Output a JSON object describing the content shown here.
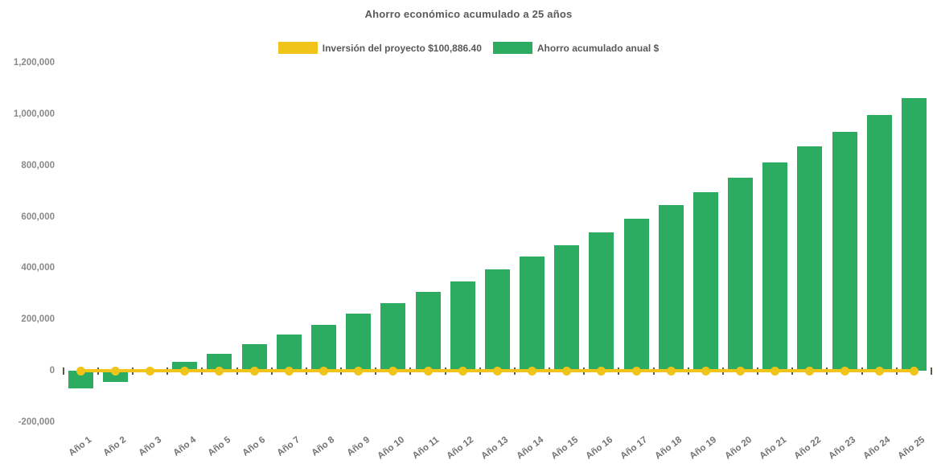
{
  "chart": {
    "title": "Ahorro económico acumulado a 25 años",
    "legend": [
      {
        "label": "Inversión del proyecto $100,886.40",
        "color": "#F0C419"
      },
      {
        "label": "Ahorro acumulado anual $",
        "color": "#2BAC60"
      }
    ]
  },
  "chart_data": {
    "type": "bar",
    "title": "Ahorro económico acumulado a 25 años",
    "xlabel": "",
    "ylabel": "",
    "ylim": [
      -200000,
      1200000
    ],
    "grid": false,
    "legend_position": "top-center",
    "categories": [
      "Año 1",
      "Año 2",
      "Año 3",
      "Año 4",
      "Año 5",
      "Año 6",
      "Año 7",
      "Año 8",
      "Año 9",
      "Año 10",
      "Año 11",
      "Año 12",
      "Año 13",
      "Año 14",
      "Año 15",
      "Año 16",
      "Año 17",
      "Año 18",
      "Año 19",
      "Año 20",
      "Año 21",
      "Año 22",
      "Año 23",
      "Año 24",
      "Año 25"
    ],
    "ytick_values": [
      -200000,
      0,
      200000,
      400000,
      600000,
      800000,
      1000000,
      1200000
    ],
    "ytick_labels": [
      "-200,000",
      "0",
      "200,000",
      "400,000",
      "600,000",
      "800,000",
      "1,000,000",
      "1,200,000"
    ],
    "series": [
      {
        "name": "Ahorro acumulado anual $",
        "type": "bar",
        "color": "#2BAC60",
        "values": [
          -69000,
          -44000,
          -6000,
          33000,
          67000,
          102000,
          142000,
          180000,
          222000,
          262000,
          307000,
          349000,
          394000,
          444000,
          490000,
          540000,
          593000,
          646000,
          696000,
          751000,
          813000,
          875000,
          931000,
          995000,
          1063000
        ]
      },
      {
        "name": "Inversión del proyecto $100,886.40",
        "type": "line",
        "color": "#F0C419",
        "marker": "circle",
        "values": [
          0,
          0,
          0,
          0,
          0,
          0,
          0,
          0,
          0,
          0,
          0,
          0,
          0,
          0,
          0,
          0,
          0,
          0,
          0,
          0,
          0,
          0,
          0,
          0,
          0
        ]
      }
    ]
  }
}
